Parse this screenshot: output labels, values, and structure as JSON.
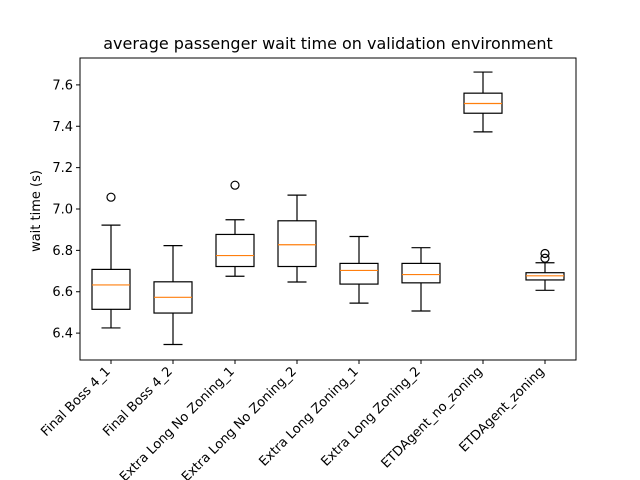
{
  "chart_data": {
    "type": "box",
    "title": "average passenger wait time on validation environment",
    "xlabel": "",
    "ylabel": "wait time (s)",
    "ylim": [
      6.27,
      7.73
    ],
    "yticks": [
      6.4,
      6.6,
      6.8,
      7.0,
      7.2,
      7.4,
      7.6
    ],
    "ytick_labels": [
      "6.4",
      "6.6",
      "6.8",
      "7.0",
      "7.2",
      "7.4",
      "7.6"
    ],
    "grid": false,
    "box_color": "#000000",
    "median_color": "#ff7f0e",
    "categories": [
      "Final Boss 4_1",
      "Final Boss 4_2",
      "Extra Long No Zoning_1",
      "Extra Long No Zoning_2",
      "Extra Long Zoning_1",
      "Extra Long Zoning_2",
      "ETDAgent_no_zoning",
      "ETDAgent_zoning"
    ],
    "boxes": [
      {
        "whisker_low": 6.425,
        "q1": 6.515,
        "median": 6.633,
        "q3": 6.708,
        "whisker_high": 6.922,
        "outliers": [
          7.057
        ]
      },
      {
        "whisker_low": 6.345,
        "q1": 6.497,
        "median": 6.573,
        "q3": 6.648,
        "whisker_high": 6.823,
        "outliers": []
      },
      {
        "whisker_low": 6.675,
        "q1": 6.722,
        "median": 6.775,
        "q3": 6.877,
        "whisker_high": 6.948,
        "outliers": [
          7.115
        ]
      },
      {
        "whisker_low": 6.647,
        "q1": 6.722,
        "median": 6.827,
        "q3": 6.943,
        "whisker_high": 7.067,
        "outliers": []
      },
      {
        "whisker_low": 6.545,
        "q1": 6.637,
        "median": 6.703,
        "q3": 6.737,
        "whisker_high": 6.867,
        "outliers": []
      },
      {
        "whisker_low": 6.507,
        "q1": 6.643,
        "median": 6.683,
        "q3": 6.737,
        "whisker_high": 6.813,
        "outliers": []
      },
      {
        "whisker_low": 7.373,
        "q1": 7.463,
        "median": 7.51,
        "q3": 7.56,
        "whisker_high": 7.662,
        "outliers": []
      },
      {
        "whisker_low": 6.607,
        "q1": 6.657,
        "median": 6.677,
        "q3": 6.692,
        "whisker_high": 6.74,
        "outliers": [
          6.762,
          6.785
        ]
      }
    ]
  }
}
